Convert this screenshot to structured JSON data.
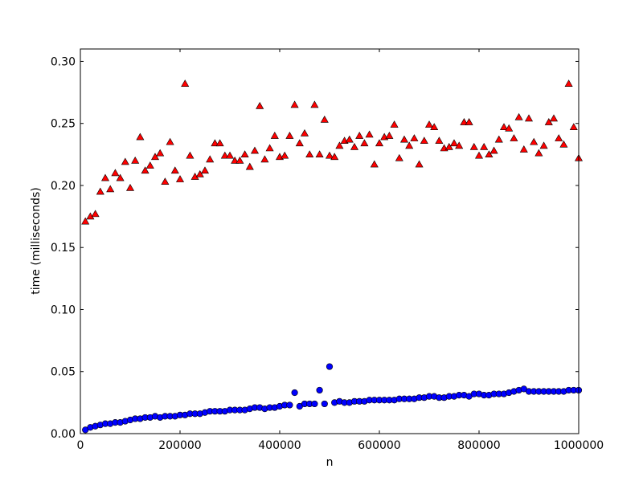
{
  "chart_data": {
    "type": "scatter",
    "title": "",
    "xlabel": "n",
    "ylabel": "time (milliseconds)",
    "xlim": [
      0,
      1000000
    ],
    "ylim": [
      0,
      0.31
    ],
    "xticks": [
      0,
      200000,
      400000,
      600000,
      800000,
      1000000
    ],
    "xtick_labels": [
      "0",
      "200000",
      "400000",
      "600000",
      "800000",
      "1000000"
    ],
    "yticks": [
      0,
      0.05,
      0.1,
      0.15,
      0.2,
      0.25,
      0.3
    ],
    "ytick_labels": [
      "0.00",
      "0.05",
      "0.10",
      "0.15",
      "0.20",
      "0.25",
      "0.30"
    ],
    "grid": false,
    "x_start": 10000,
    "x_step": 10000,
    "series": [
      {
        "marker": "triangle",
        "color": "#ff0000",
        "edge_color": "#000000",
        "values": [
          0.171,
          0.175,
          0.177,
          0.195,
          0.206,
          0.197,
          0.21,
          0.206,
          0.219,
          0.198,
          0.22,
          0.239,
          0.212,
          0.216,
          0.223,
          0.226,
          0.203,
          0.235,
          0.212,
          0.205,
          0.282,
          0.224,
          0.207,
          0.209,
          0.212,
          0.221,
          0.234,
          0.234,
          0.224,
          0.224,
          0.22,
          0.22,
          0.225,
          0.215,
          0.228,
          0.264,
          0.221,
          0.23,
          0.24,
          0.223,
          0.224,
          0.24,
          0.265,
          0.234,
          0.242,
          0.225,
          0.265,
          0.225,
          0.253,
          0.224,
          0.223,
          0.232,
          0.236,
          0.237,
          0.231,
          0.24,
          0.234,
          0.241,
          0.217,
          0.234,
          0.239,
          0.24,
          0.249,
          0.222,
          0.237,
          0.232,
          0.238,
          0.217,
          0.236,
          0.249,
          0.247,
          0.236,
          0.23,
          0.231,
          0.234,
          0.232,
          0.251,
          0.251,
          0.231,
          0.224,
          0.231,
          0.225,
          0.228,
          0.237,
          0.247,
          0.246,
          0.238,
          0.255,
          0.229,
          0.254,
          0.235,
          0.226,
          0.232,
          0.251,
          0.254,
          0.238,
          0.233,
          0.282,
          0.247,
          0.222
        ]
      },
      {
        "marker": "circle",
        "color": "#0000ff",
        "edge_color": "#000000",
        "values": [
          0.003,
          0.005,
          0.006,
          0.007,
          0.008,
          0.008,
          0.009,
          0.009,
          0.01,
          0.011,
          0.012,
          0.012,
          0.013,
          0.013,
          0.014,
          0.013,
          0.014,
          0.014,
          0.014,
          0.015,
          0.015,
          0.016,
          0.016,
          0.016,
          0.017,
          0.018,
          0.018,
          0.018,
          0.018,
          0.019,
          0.019,
          0.019,
          0.019,
          0.02,
          0.021,
          0.021,
          0.02,
          0.021,
          0.021,
          0.022,
          0.023,
          0.023,
          0.033,
          0.022,
          0.024,
          0.024,
          0.024,
          0.035,
          0.024,
          0.054,
          0.025,
          0.026,
          0.025,
          0.025,
          0.026,
          0.026,
          0.026,
          0.027,
          0.027,
          0.027,
          0.027,
          0.027,
          0.027,
          0.028,
          0.028,
          0.028,
          0.028,
          0.029,
          0.029,
          0.03,
          0.03,
          0.029,
          0.029,
          0.03,
          0.03,
          0.031,
          0.031,
          0.03,
          0.032,
          0.032,
          0.031,
          0.031,
          0.032,
          0.032,
          0.032,
          0.033,
          0.034,
          0.035,
          0.036,
          0.034,
          0.034,
          0.034,
          0.034,
          0.034,
          0.034,
          0.034,
          0.034,
          0.035,
          0.035,
          0.035
        ]
      }
    ]
  }
}
